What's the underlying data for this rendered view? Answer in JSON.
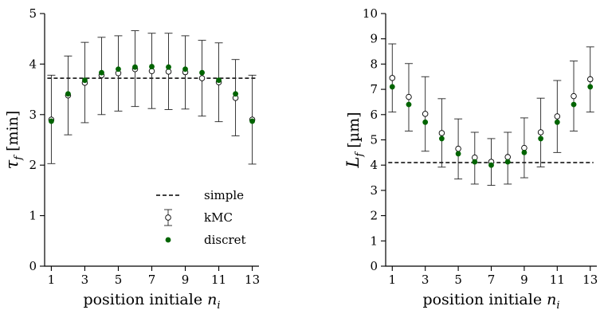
{
  "chart_data": [
    {
      "type": "scatter",
      "xlabel": "position initiale n_i",
      "ylabel": "τ_f [min]",
      "ylabel_parts": {
        "symbol": "τ",
        "sub": "f",
        "unit": " [min]"
      },
      "xlabel_parts": {
        "text": "position initiale ",
        "symbol": "n",
        "sub": "i"
      },
      "xlim": [
        0.6,
        13.4
      ],
      "ylim": [
        0,
        5
      ],
      "xticks": [
        1,
        3,
        5,
        7,
        9,
        11,
        13
      ],
      "yticks": [
        0,
        1,
        2,
        3,
        4,
        5
      ],
      "x": [
        1,
        2,
        3,
        4,
        5,
        6,
        7,
        8,
        9,
        10,
        11,
        12,
        13
      ],
      "grid": false,
      "legend": "lower-right",
      "series": [
        {
          "name": "simple",
          "kind": "hline",
          "y": 3.72,
          "color": "#000000"
        },
        {
          "name": "kMC",
          "kind": "errorbar",
          "marker": "open-circle",
          "color": "#000000",
          "values": [
            2.9,
            3.38,
            3.63,
            3.78,
            3.82,
            3.9,
            3.86,
            3.85,
            3.84,
            3.72,
            3.64,
            3.33,
            2.9
          ],
          "err_low": [
            2.03,
            2.6,
            2.84,
            3.0,
            3.07,
            3.16,
            3.12,
            3.1,
            3.11,
            2.97,
            2.86,
            2.58,
            2.02
          ],
          "err_high": [
            3.78,
            4.16,
            4.43,
            4.53,
            4.56,
            4.66,
            4.61,
            4.61,
            4.56,
            4.47,
            4.42,
            4.09,
            3.78
          ]
        },
        {
          "name": "discret",
          "kind": "scatter",
          "marker": "filled-circle",
          "color": "#006400",
          "values": [
            2.87,
            3.41,
            3.68,
            3.83,
            3.9,
            3.94,
            3.95,
            3.94,
            3.9,
            3.83,
            3.68,
            3.41,
            2.87
          ]
        }
      ]
    },
    {
      "type": "scatter",
      "xlabel": "position initiale n_i",
      "ylabel": "L_f [µm]",
      "ylabel_parts": {
        "symbol": "L",
        "sub": "f",
        "unit": " [µm]"
      },
      "xlabel_parts": {
        "text": "position initiale ",
        "symbol": "n",
        "sub": "i"
      },
      "xlim": [
        0.6,
        13.4
      ],
      "ylim": [
        0,
        10
      ],
      "xticks": [
        1,
        3,
        5,
        7,
        9,
        11,
        13
      ],
      "yticks": [
        0,
        1,
        2,
        3,
        4,
        5,
        6,
        7,
        8,
        9,
        10
      ],
      "x": [
        1,
        2,
        3,
        4,
        5,
        6,
        7,
        8,
        9,
        10,
        11,
        12,
        13
      ],
      "grid": false,
      "series": [
        {
          "name": "simple",
          "kind": "hline",
          "y": 4.1,
          "color": "#000000"
        },
        {
          "name": "kMC",
          "kind": "errorbar",
          "marker": "open-circle",
          "color": "#000000",
          "values": [
            7.45,
            6.7,
            6.03,
            5.27,
            4.65,
            4.3,
            4.13,
            4.32,
            4.68,
            5.3,
            5.93,
            6.73,
            7.4
          ],
          "err_low": [
            6.1,
            5.35,
            4.55,
            3.92,
            3.45,
            3.25,
            3.2,
            3.25,
            3.5,
            3.93,
            4.5,
            5.35,
            6.1
          ],
          "err_high": [
            8.8,
            8.02,
            7.5,
            6.63,
            5.83,
            5.3,
            5.05,
            5.3,
            5.87,
            6.65,
            7.35,
            8.12,
            8.68
          ]
        },
        {
          "name": "discret",
          "kind": "scatter",
          "marker": "filled-circle",
          "color": "#006400",
          "values": [
            7.1,
            6.4,
            5.7,
            5.05,
            4.45,
            4.13,
            4.0,
            4.13,
            4.5,
            5.05,
            5.7,
            6.4,
            7.1
          ]
        }
      ]
    }
  ]
}
